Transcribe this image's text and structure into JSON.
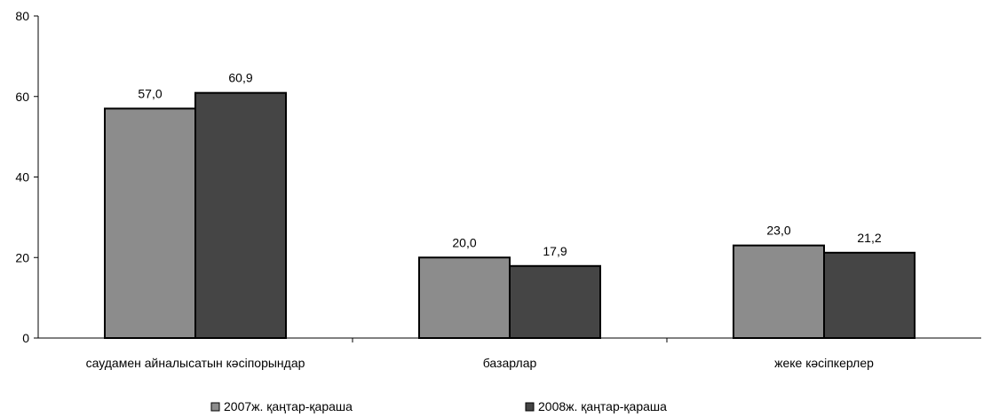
{
  "chart_data": {
    "type": "bar",
    "categories": [
      "саудамен айналысатын кәсіпорындар",
      "базарлар",
      "жеке кәсіпкерлер"
    ],
    "series": [
      {
        "name": "2007ж. қаңтар-қараша",
        "values": [
          57.0,
          20.0,
          23.0
        ],
        "labels": [
          "57,0",
          "20,0",
          "23,0"
        ],
        "color": "#8c8c8c"
      },
      {
        "name": "2008ж. қаңтар-қараша",
        "values": [
          60.9,
          17.9,
          21.2
        ],
        "labels": [
          "60,9",
          "17,9",
          "21,2"
        ],
        "color": "#454545"
      }
    ],
    "ylim": [
      0,
      80
    ],
    "yticks": [
      0,
      20,
      40,
      60,
      80
    ],
    "yticklabels": [
      "0",
      "20",
      "40",
      "60",
      "80"
    ],
    "grid": false,
    "legend_position": "bottom"
  }
}
